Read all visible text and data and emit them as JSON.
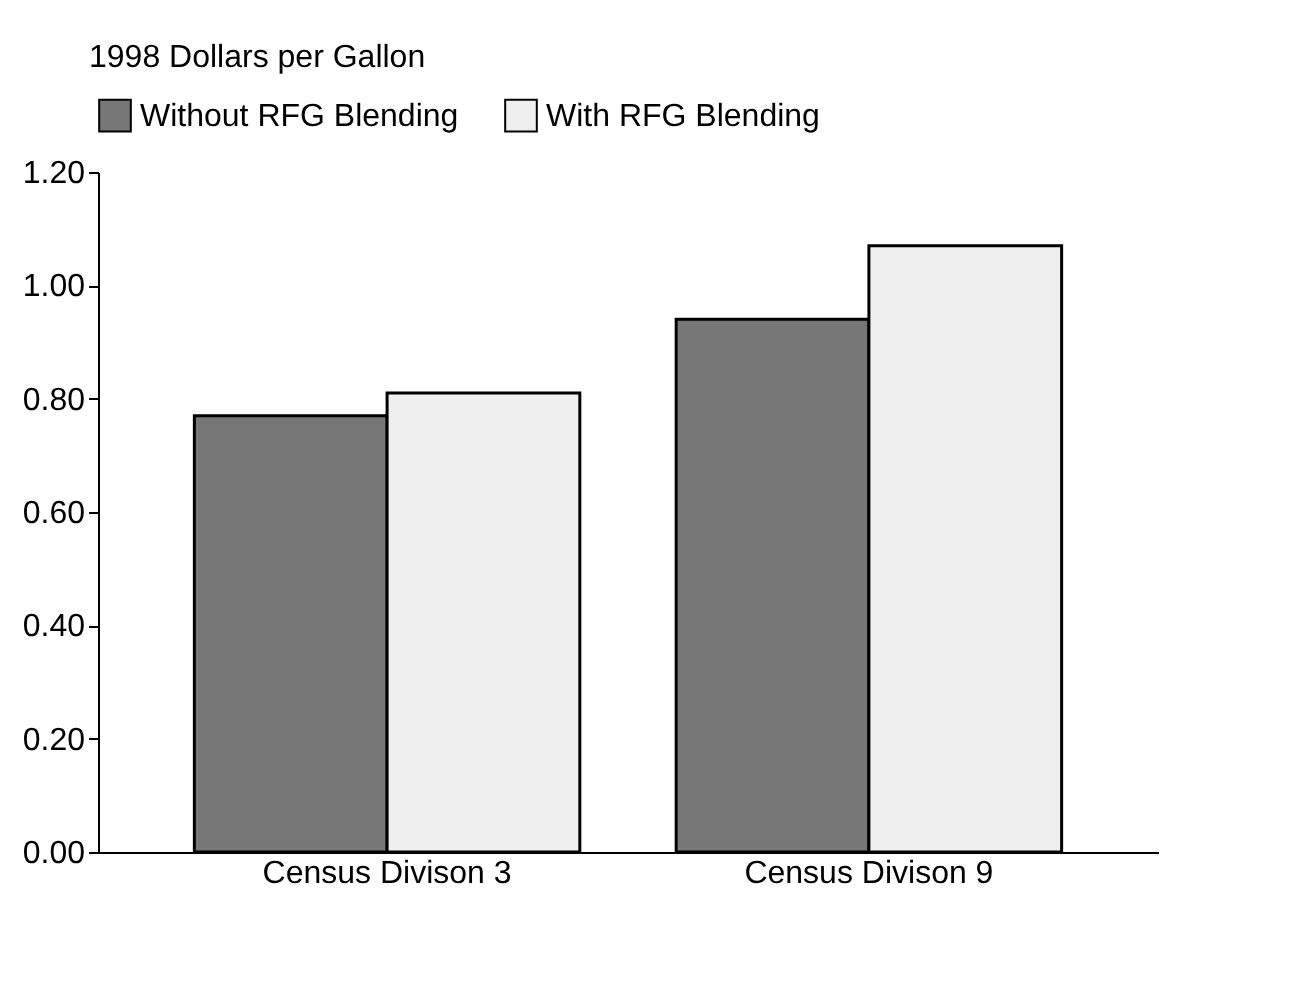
{
  "chart_data": {
    "type": "bar",
    "ylabel": "1998 Dollars per Gallon",
    "categories": [
      "Census Divison 3",
      "Census Divison 9"
    ],
    "series": [
      {
        "name": "Without RFG Blending",
        "color": "#777777",
        "values": [
          0.77,
          0.94
        ]
      },
      {
        "name": "With RFG Blending",
        "color": "#efefef",
        "values": [
          0.81,
          1.07
        ]
      }
    ],
    "ylim": [
      0,
      1.2
    ],
    "yticks": [
      {
        "value": 0,
        "label": "0.00"
      },
      {
        "value": 0.2,
        "label": "0.20"
      },
      {
        "value": 0.4,
        "label": "0.40"
      },
      {
        "value": 0.6,
        "label": "0.60"
      },
      {
        "value": 0.8,
        "label": "0.80"
      },
      {
        "value": 1.0,
        "label": "1.00"
      },
      {
        "value": 1.2,
        "label": "1.20"
      }
    ],
    "grid": false,
    "legend": "top"
  }
}
